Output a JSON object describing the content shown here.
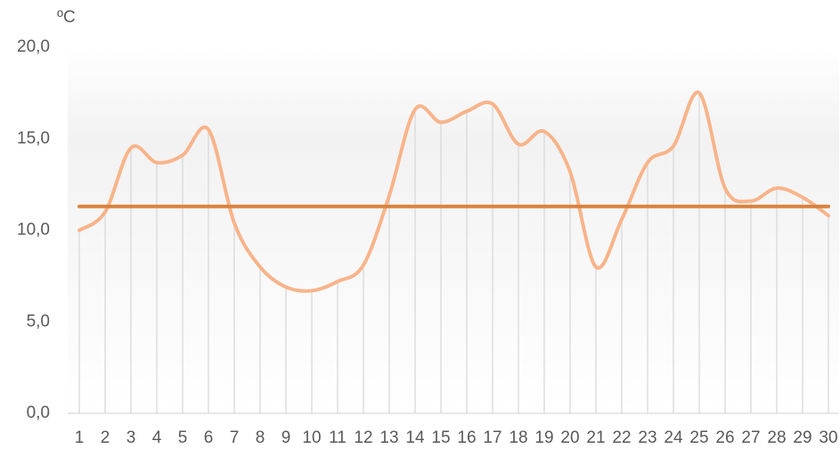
{
  "chart_data": {
    "type": "line",
    "y_label": "ºC",
    "categories": [
      "1",
      "2",
      "3",
      "4",
      "5",
      "6",
      "7",
      "8",
      "9",
      "10",
      "11",
      "12",
      "13",
      "14",
      "15",
      "16",
      "17",
      "18",
      "19",
      "20",
      "21",
      "22",
      "23",
      "24",
      "25",
      "26",
      "27",
      "28",
      "29",
      "30"
    ],
    "series": [
      {
        "color": "#f8b48a",
        "smooth": true,
        "drop_lines": true,
        "values": [
          10.0,
          11.0,
          14.5,
          13.7,
          14.1,
          15.5,
          10.4,
          8.0,
          6.9,
          6.7,
          7.2,
          8.1,
          11.9,
          16.6,
          15.9,
          16.5,
          16.9,
          14.7,
          15.4,
          13.2,
          8.0,
          10.6,
          13.7,
          14.6,
          17.5,
          12.3,
          11.6,
          12.3,
          11.8,
          10.8
        ]
      },
      {
        "color": "#d9823f",
        "smooth": false,
        "drop_lines": false,
        "values": [
          11.3,
          11.3,
          11.3,
          11.3,
          11.3,
          11.3,
          11.3,
          11.3,
          11.3,
          11.3,
          11.3,
          11.3,
          11.3,
          11.3,
          11.3,
          11.3,
          11.3,
          11.3,
          11.3,
          11.3,
          11.3,
          11.3,
          11.3,
          11.3,
          11.3,
          11.3,
          11.3,
          11.3,
          11.3,
          11.3
        ]
      }
    ],
    "ylim": [
      0,
      20
    ],
    "yticks": [
      {
        "value": 0,
        "label": "0,0"
      },
      {
        "value": 5,
        "label": "5,0"
      },
      {
        "value": 10,
        "label": "10,0"
      },
      {
        "value": 15,
        "label": "15,0"
      },
      {
        "value": 20,
        "label": "20,0"
      }
    ]
  }
}
